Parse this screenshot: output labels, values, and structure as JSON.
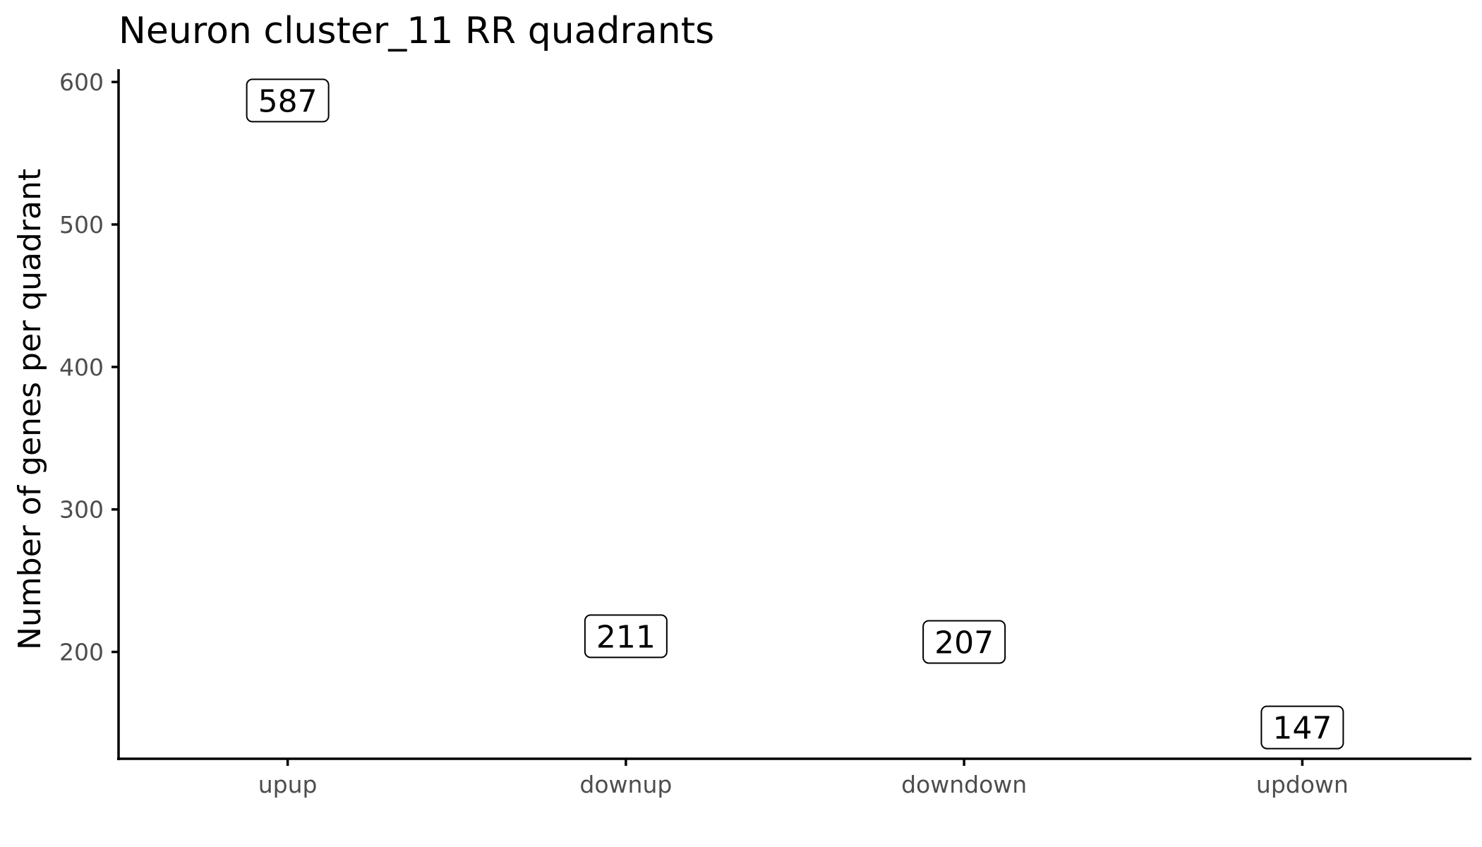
{
  "chart_data": {
    "type": "scatter",
    "title": "Neuron cluster_11 RR quadrants",
    "xlabel": "",
    "ylabel": "Number of genes per quadrant",
    "categories": [
      "upup",
      "downup",
      "downdown",
      "updown"
    ],
    "values": [
      587,
      211,
      207,
      147
    ],
    "ylim": [
      125,
      609
    ],
    "yticks": [
      200,
      300,
      400,
      500,
      600
    ],
    "grid": false,
    "legend": "none",
    "marker_style": "boxed-label"
  }
}
